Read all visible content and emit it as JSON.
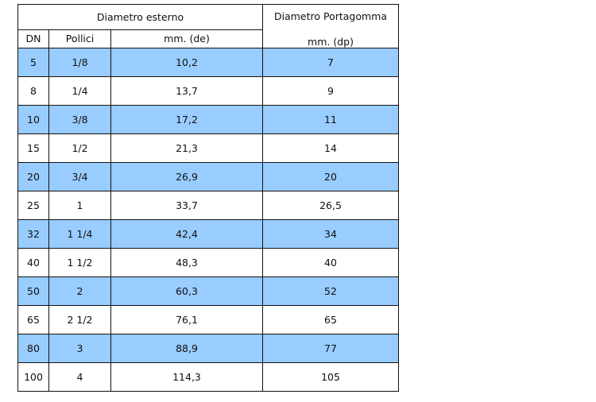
{
  "table": {
    "header": {
      "group_external": "Diametro esterno",
      "group_portagomma": "Diametro Portagomma",
      "col_dn": "DN",
      "col_pollici": "Pollici",
      "col_mm_de": "mm. (de)",
      "col_mm_dp": "mm. (dp)"
    },
    "highlight_color": "#99ccff",
    "rows": [
      {
        "dn": "5",
        "pollici": "1/8",
        "de": "10,2",
        "dp": "7"
      },
      {
        "dn": "8",
        "pollici": "1/4",
        "de": "13,7",
        "dp": "9"
      },
      {
        "dn": "10",
        "pollici": "3/8",
        "de": "17,2",
        "dp": "11"
      },
      {
        "dn": "15",
        "pollici": "1/2",
        "de": "21,3",
        "dp": "14"
      },
      {
        "dn": "20",
        "pollici": "3/4",
        "de": "26,9",
        "dp": "20"
      },
      {
        "dn": "25",
        "pollici": "1",
        "de": "33,7",
        "dp": "26,5"
      },
      {
        "dn": "32",
        "pollici": "1 1/4",
        "de": "42,4",
        "dp": "34"
      },
      {
        "dn": "40",
        "pollici": "1 1/2",
        "de": "48,3",
        "dp": "40"
      },
      {
        "dn": "50",
        "pollici": "2",
        "de": "60,3",
        "dp": "52"
      },
      {
        "dn": "65",
        "pollici": "2 1/2",
        "de": "76,1",
        "dp": "65"
      },
      {
        "dn": "80",
        "pollici": "3",
        "de": "88,9",
        "dp": "77"
      },
      {
        "dn": "100",
        "pollici": "4",
        "de": "114,3",
        "dp": "105"
      }
    ]
  }
}
